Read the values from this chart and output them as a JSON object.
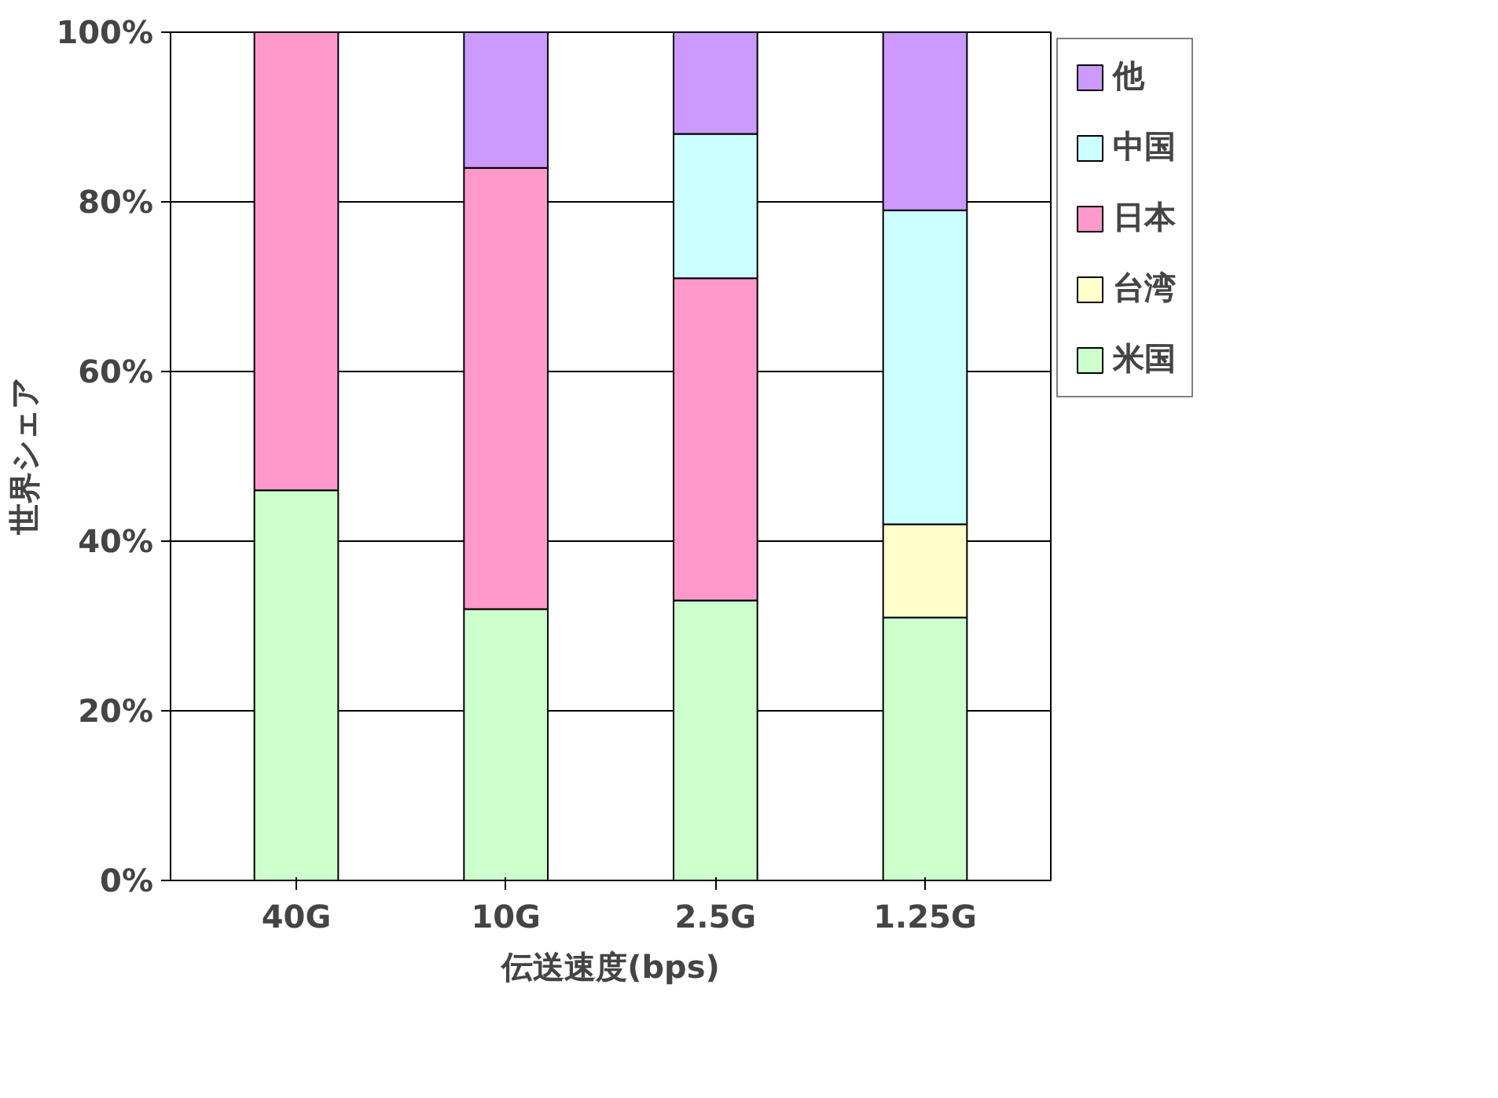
{
  "chart_data": {
    "type": "bar",
    "stacked": true,
    "xlabel": "伝送速度(bps)",
    "ylabel": "世界シェア",
    "categories": [
      "40G",
      "10G",
      "2.5G",
      "1.25G"
    ],
    "series": [
      {
        "name": "米国",
        "color": "#ccffcc",
        "values": [
          46,
          32,
          33,
          31
        ]
      },
      {
        "name": "台湾",
        "color": "#ffffcc",
        "values": [
          null,
          null,
          null,
          11
        ]
      },
      {
        "name": "日本",
        "color": "#ff99cc",
        "values": [
          54,
          52,
          38,
          null
        ]
      },
      {
        "name": "中国",
        "color": "#ccffff",
        "values": [
          null,
          null,
          17,
          37
        ]
      },
      {
        "name": "他",
        "color": "#cc99ff",
        "values": [
          null,
          16,
          12,
          21
        ]
      }
    ],
    "ylim": [
      0,
      100
    ],
    "yticks": [
      {
        "value": 0,
        "label": "0%"
      },
      {
        "value": 20,
        "label": "20%"
      },
      {
        "value": 40,
        "label": "40%"
      },
      {
        "value": 60,
        "label": "60%"
      },
      {
        "value": 80,
        "label": "80%"
      },
      {
        "value": 100,
        "label": "100%"
      }
    ],
    "grid": "y",
    "legend": "right"
  }
}
